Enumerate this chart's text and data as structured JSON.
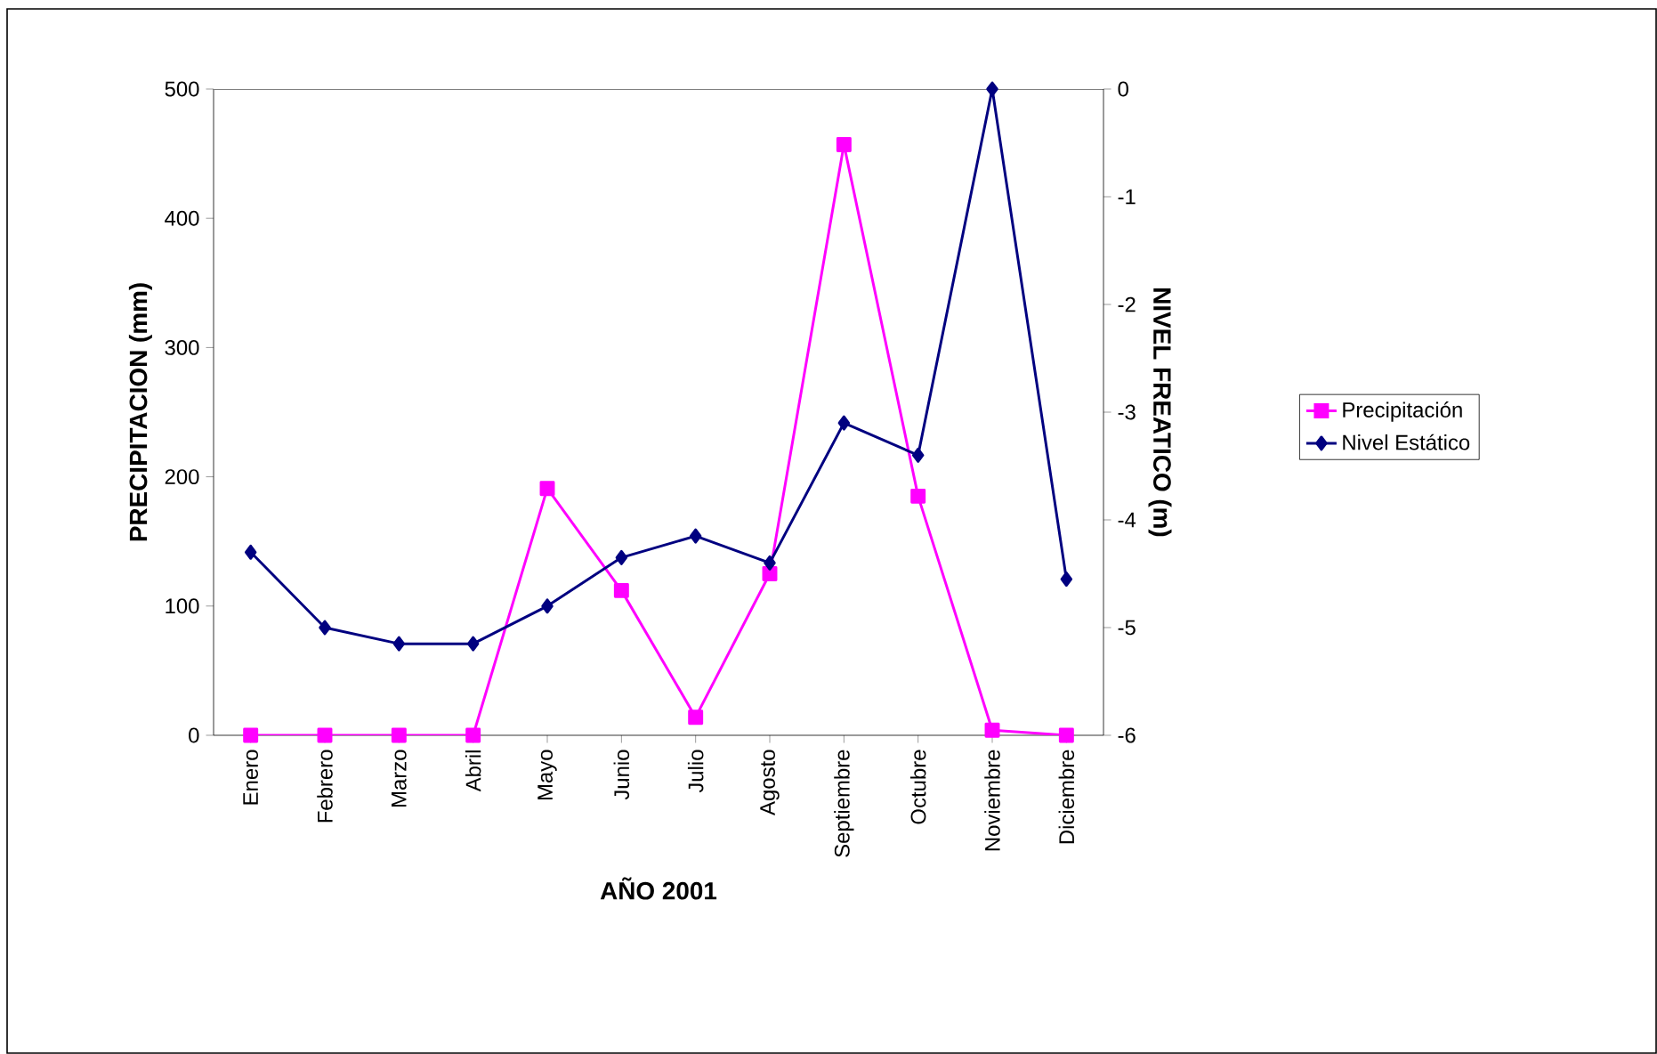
{
  "chart_data": {
    "type": "line",
    "xlabel": "AÑO 2001",
    "ylabel": "PRECIPITACION (mm)",
    "y2label": "NIVEL FREATICO (m)",
    "categories": [
      "Enero",
      "Febrero",
      "Marzo",
      "Abril",
      "Mayo",
      "Junio",
      "Julio",
      "Agosto",
      "Septiembre",
      "Octubre",
      "Noviembre",
      "Diciembre"
    ],
    "series": [
      {
        "name": "Precipitación",
        "color": "#ff00ff",
        "marker": "square",
        "values": [
          0,
          0,
          0,
          0,
          191,
          112,
          14,
          125,
          457,
          185,
          4,
          0
        ]
      },
      {
        "name": "Nivel Estático",
        "color": "#000080",
        "marker": "diamond",
        "axis": "y2",
        "values": [
          -4.3,
          -5.0,
          -5.15,
          -5.15,
          -4.8,
          -4.35,
          -4.15,
          -4.4,
          -3.1,
          -3.4,
          0,
          -4.55
        ]
      }
    ],
    "ylim": [
      0,
      500
    ],
    "yticks": [
      0,
      100,
      200,
      300,
      400,
      500
    ],
    "y2lim": [
      -6,
      0
    ],
    "y2ticks": [
      -6,
      -5,
      -4,
      -3,
      -2,
      -1,
      0
    ],
    "legend": "right",
    "grid": false
  }
}
